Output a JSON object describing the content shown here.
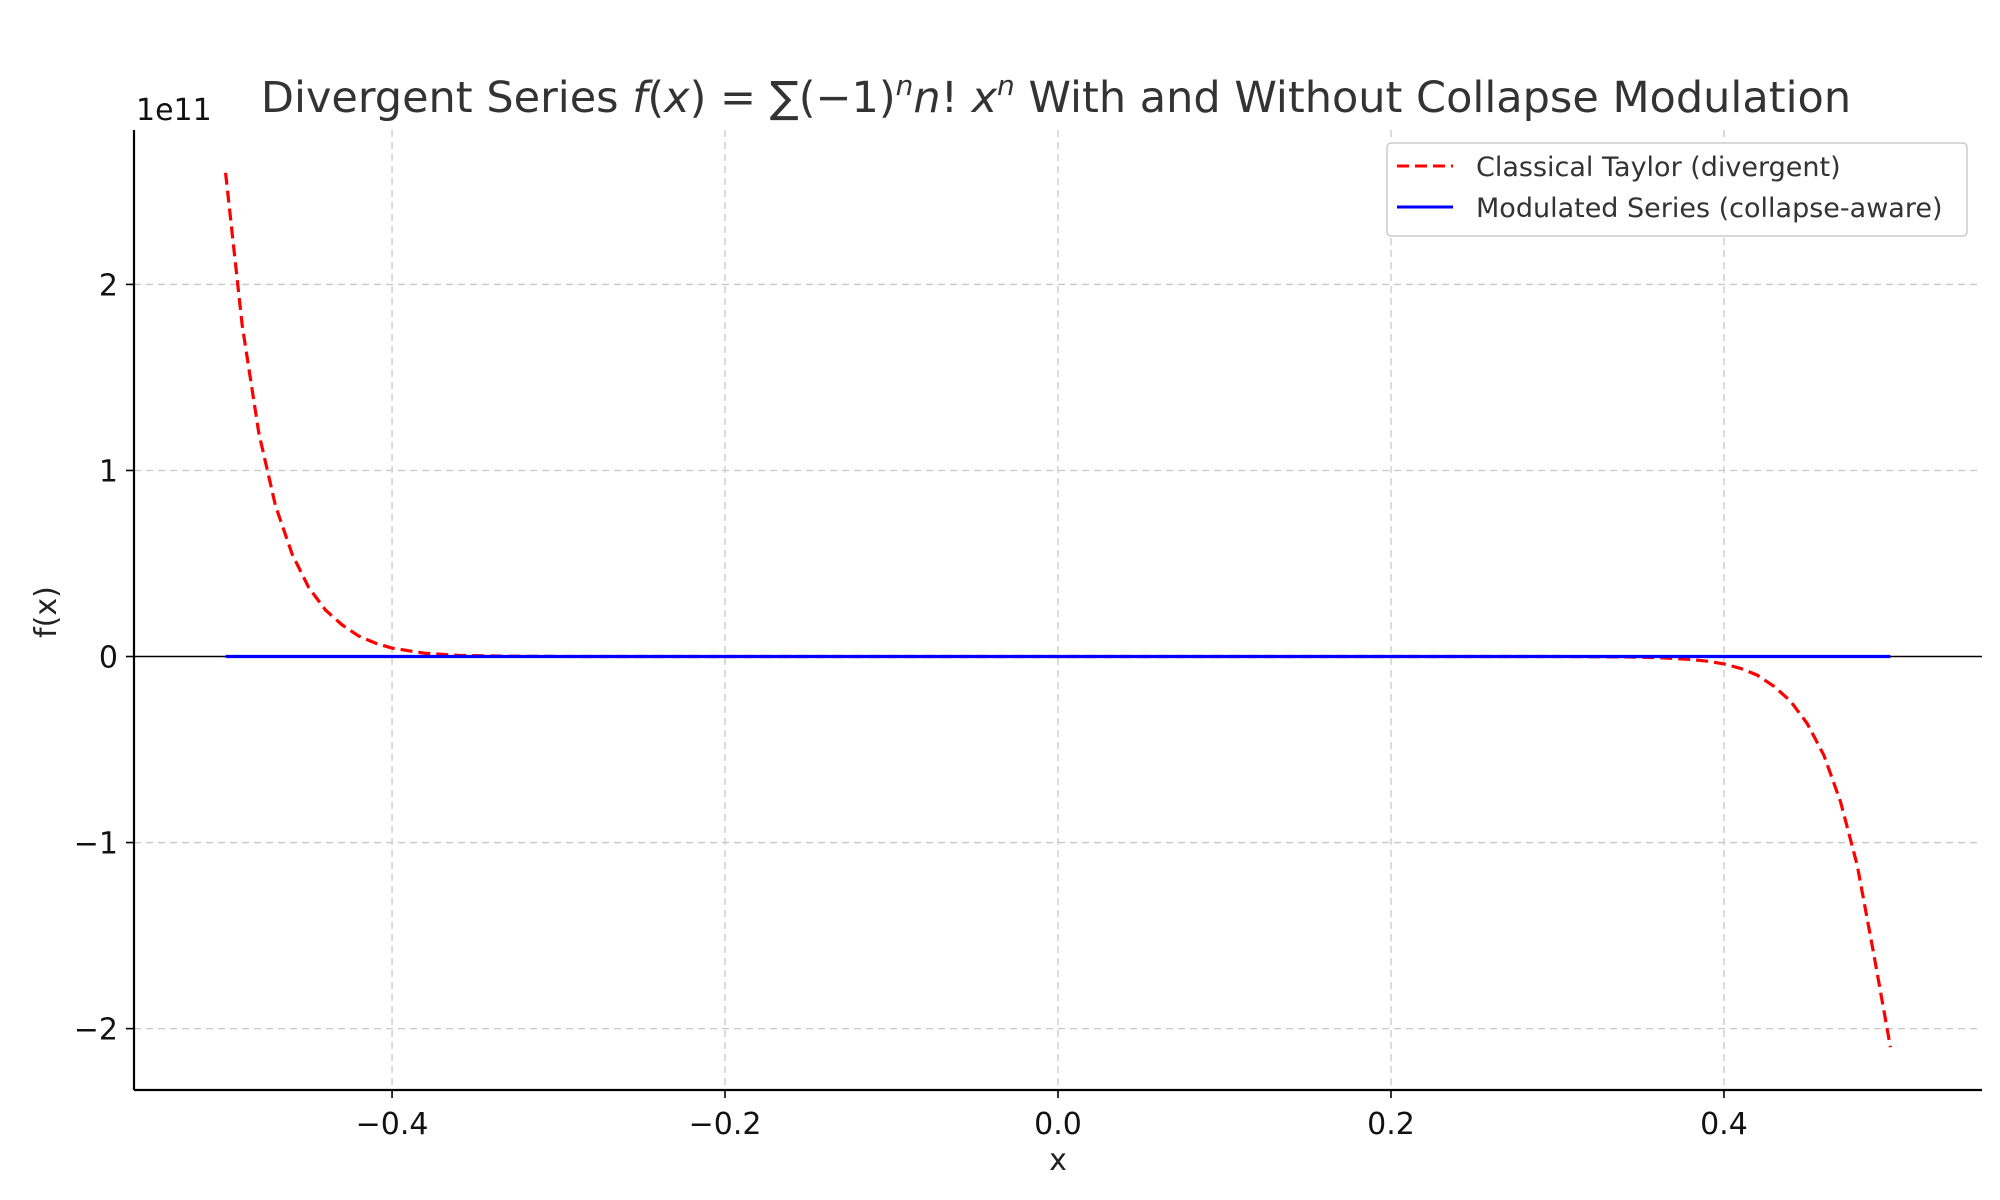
{
  "chart_data": {
    "type": "line",
    "title": {
      "prefix": "Divergent Series ",
      "formula_a": "f",
      "formula_b": "(",
      "formula_c": "x",
      "formula_d": ") = ∑(−1)",
      "formula_e": "n",
      "formula_f": "n",
      "formula_g": "! ",
      "formula_h": "x",
      "formula_i": "n",
      "suffix": " With and Without Collapse Modulation"
    },
    "xlabel": "x",
    "ylabel": "f(x)",
    "y_offset_text": "1e11",
    "y_scale_factor": 100000000000,
    "xlim": [
      -0.555,
      0.555
    ],
    "ylim": [
      -2.33,
      2.83
    ],
    "x_ticks": [
      -0.4,
      -0.2,
      0.0,
      0.2,
      0.4
    ],
    "x_tick_labels": [
      "−0.4",
      "−0.2",
      "0.0",
      "0.2",
      "0.4"
    ],
    "y_ticks": [
      -2,
      -1,
      0,
      1,
      2
    ],
    "y_tick_labels": [
      "−2",
      "−1",
      "0",
      "1",
      "2"
    ],
    "grid": true,
    "zero_line": true,
    "legend": {
      "position": "top-right"
    },
    "series": [
      {
        "name": "Classical Taylor (divergent)",
        "color": "#ff0000",
        "style": "dashed",
        "x": [
          -0.5,
          -0.49,
          -0.48,
          -0.47,
          -0.46,
          -0.45,
          -0.44,
          -0.43,
          -0.42,
          -0.41,
          -0.4,
          -0.38,
          -0.36,
          -0.33,
          -0.3,
          -0.2,
          -0.1,
          0.0,
          0.1,
          0.2,
          0.3,
          0.34,
          0.36,
          0.38,
          0.39,
          0.4,
          0.41,
          0.42,
          0.43,
          0.44,
          0.45,
          0.46,
          0.47,
          0.48,
          0.49,
          0.5
        ],
        "y": [
          2.6,
          1.78,
          1.2,
          0.81,
          0.55,
          0.37,
          0.25,
          0.17,
          0.11,
          0.072,
          0.045,
          0.017,
          0.006,
          0.0015,
          0.0003,
          0.0,
          0.0,
          0.0,
          0.0,
          0.0,
          0.0,
          -0.002,
          -0.006,
          -0.016,
          -0.025,
          -0.04,
          -0.064,
          -0.1,
          -0.16,
          -0.24,
          -0.36,
          -0.53,
          -0.78,
          -1.12,
          -1.6,
          -2.1
        ]
      },
      {
        "name": "Modulated Series (collapse-aware)",
        "color": "#0000ff",
        "style": "solid",
        "x": [
          -0.5,
          0.5
        ],
        "y": [
          0.0,
          0.0
        ]
      }
    ]
  }
}
